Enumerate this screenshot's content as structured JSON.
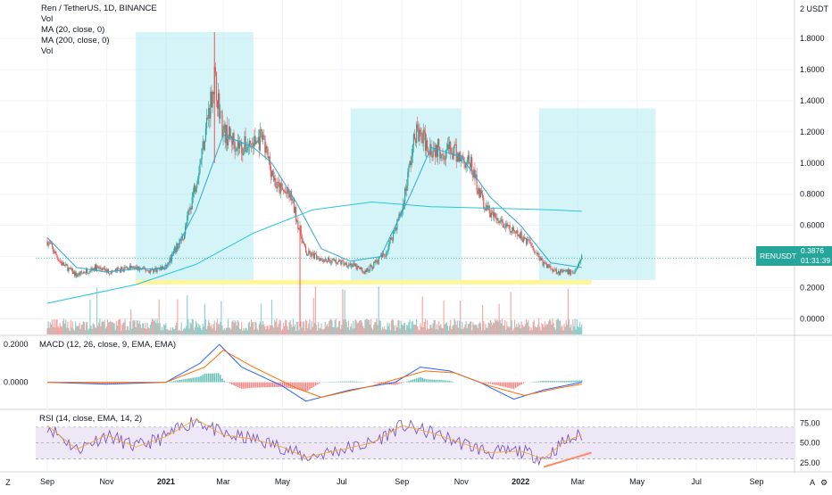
{
  "legend": {
    "symbol": "Ren / TetherUS, 1D, BINANCE",
    "vol": "Vol",
    "ma20": "MA (20, close, 0)",
    "ma200": "MA (200, close, 0)",
    "vol2": "Vol"
  },
  "price_scale_title": "2 USDT",
  "price_tag": {
    "symbol": "RENUSDT",
    "price": "0.3876",
    "countdown": "01:31:39"
  },
  "macd_label": "MACD (12, 26, close, 9, EMA, EMA)",
  "rsi_label": "RSI (14, close, EMA, 14, 2)",
  "corner_left": "Z",
  "corner_right": "A",
  "gear_icon": "gear-icon",
  "colors": {
    "up": "#26a69a",
    "down": "#ef5350",
    "ma20": "#2ca8d8",
    "ma200": "#26c6da",
    "box": "#b2ebf2",
    "support": "#fff59d",
    "macd": "#2962ff",
    "signal": "#ff6d00",
    "rsi": "#7e57c2",
    "rsi_band": "#ede7f6",
    "divergence": "#ff8a65"
  },
  "chart_data": [
    {
      "type": "candlestick",
      "title": "Ren / TetherUS, 1D, BINANCE",
      "x_ticks": [
        "Sep",
        "Nov",
        "2021",
        "Mar",
        "May",
        "Jul",
        "Sep",
        "Nov",
        "2022",
        "Mar",
        "May",
        "Jul",
        "Sep"
      ],
      "y_ticks": [
        "0.0000",
        "0.2000",
        "0.4000",
        "0.6000",
        "0.8000",
        "1.0000",
        "1.2000",
        "1.4000",
        "1.6000",
        "1.8000"
      ],
      "ylim": [
        -0.1,
        2.0
      ],
      "close_path": [
        [
          "2020-09-01",
          0.5
        ],
        [
          "2020-09-15",
          0.36
        ],
        [
          "2020-10-01",
          0.28
        ],
        [
          "2020-10-20",
          0.33
        ],
        [
          "2020-11-05",
          0.3
        ],
        [
          "2020-11-25",
          0.33
        ],
        [
          "2020-12-15",
          0.31
        ],
        [
          "2021-01-01",
          0.33
        ],
        [
          "2021-01-20",
          0.55
        ],
        [
          "2021-02-05",
          1.0
        ],
        [
          "2021-02-20",
          1.55
        ],
        [
          "2021-03-01",
          1.2
        ],
        [
          "2021-03-20",
          1.1
        ],
        [
          "2021-04-10",
          1.15
        ],
        [
          "2021-04-25",
          0.85
        ],
        [
          "2021-05-10",
          0.78
        ],
        [
          "2021-05-25",
          0.42
        ],
        [
          "2021-06-15",
          0.38
        ],
        [
          "2021-07-10",
          0.35
        ],
        [
          "2021-07-25",
          0.3
        ],
        [
          "2021-08-15",
          0.42
        ],
        [
          "2021-09-01",
          0.7
        ],
        [
          "2021-09-15",
          1.2
        ],
        [
          "2021-10-01",
          1.1
        ],
        [
          "2021-10-20",
          1.08
        ],
        [
          "2021-11-10",
          1.0
        ],
        [
          "2021-11-25",
          0.72
        ],
        [
          "2021-12-10",
          0.62
        ],
        [
          "2021-12-25",
          0.55
        ],
        [
          "2022-01-10",
          0.5
        ],
        [
          "2022-01-25",
          0.35
        ],
        [
          "2022-02-10",
          0.3
        ],
        [
          "2022-02-25",
          0.3
        ],
        [
          "2022-03-05",
          0.3876
        ]
      ],
      "ma20": [
        [
          "2020-09-01",
          0.52
        ],
        [
          "2020-10-01",
          0.33
        ],
        [
          "2020-11-01",
          0.3
        ],
        [
          "2020-12-01",
          0.32
        ],
        [
          "2021-01-01",
          0.32
        ],
        [
          "2021-02-01",
          0.7
        ],
        [
          "2021-03-01",
          1.18
        ],
        [
          "2021-04-01",
          1.1
        ],
        [
          "2021-04-20",
          1.0
        ],
        [
          "2021-05-15",
          0.75
        ],
        [
          "2021-06-10",
          0.45
        ],
        [
          "2021-07-10",
          0.37
        ],
        [
          "2021-08-10",
          0.4
        ],
        [
          "2021-09-10",
          0.8
        ],
        [
          "2021-10-01",
          1.1
        ],
        [
          "2021-11-01",
          1.04
        ],
        [
          "2021-12-01",
          0.78
        ],
        [
          "2022-01-01",
          0.6
        ],
        [
          "2022-02-01",
          0.36
        ],
        [
          "2022-03-05",
          0.33
        ]
      ],
      "ma200": [
        [
          "2020-09-01",
          0.1
        ],
        [
          "2020-12-01",
          0.22
        ],
        [
          "2021-02-01",
          0.35
        ],
        [
          "2021-04-01",
          0.55
        ],
        [
          "2021-06-01",
          0.7
        ],
        [
          "2021-08-01",
          0.75
        ],
        [
          "2021-10-01",
          0.72
        ],
        [
          "2021-12-01",
          0.71
        ],
        [
          "2022-02-01",
          0.7
        ],
        [
          "2022-03-05",
          0.69
        ]
      ],
      "boxes": [
        {
          "x": [
            "2020-12-01",
            "2021-04-01"
          ],
          "y": [
            0.25,
            1.84
          ]
        },
        {
          "x": [
            "2021-07-10",
            "2021-11-01"
          ],
          "y": [
            0.25,
            1.35
          ]
        },
        {
          "x": [
            "2022-01-20",
            "2022-05-20"
          ],
          "y": [
            0.25,
            1.35
          ]
        }
      ],
      "support_zone": {
        "x": [
          "2020-12-01",
          "2022-03-15"
        ],
        "y": [
          0.22,
          0.25
        ]
      },
      "last_price": 0.3876
    },
    {
      "type": "bar",
      "title": "Vol",
      "note": "volume bars overlaid at bottom of price pane"
    },
    {
      "type": "line",
      "title": "MACD (12, 26, close, 9, EMA, EMA)",
      "y_ticks": [
        "0.0000",
        "0.2000"
      ],
      "ylim": [
        -0.12,
        0.22
      ],
      "macd": [
        [
          "2020-09-01",
          0.0
        ],
        [
          "2020-11-01",
          -0.01
        ],
        [
          "2021-01-01",
          0.0
        ],
        [
          "2021-02-05",
          0.1
        ],
        [
          "2021-02-25",
          0.2
        ],
        [
          "2021-03-20",
          0.08
        ],
        [
          "2021-05-01",
          -0.02
        ],
        [
          "2021-05-25",
          -0.1
        ],
        [
          "2021-07-10",
          -0.04
        ],
        [
          "2021-08-25",
          0.0
        ],
        [
          "2021-09-20",
          0.08
        ],
        [
          "2021-10-20",
          0.06
        ],
        [
          "2021-11-20",
          0.0
        ],
        [
          "2021-12-25",
          -0.09
        ],
        [
          "2022-01-25",
          -0.04
        ],
        [
          "2022-03-05",
          0.0
        ]
      ],
      "signal": [
        [
          "2020-09-01",
          0.0
        ],
        [
          "2021-01-01",
          0.0
        ],
        [
          "2021-02-10",
          0.08
        ],
        [
          "2021-03-01",
          0.17
        ],
        [
          "2021-04-01",
          0.08
        ],
        [
          "2021-05-15",
          -0.03
        ],
        [
          "2021-06-10",
          -0.08
        ],
        [
          "2021-08-01",
          -0.02
        ],
        [
          "2021-09-25",
          0.06
        ],
        [
          "2021-10-25",
          0.05
        ],
        [
          "2021-12-01",
          -0.02
        ],
        [
          "2022-01-05",
          -0.07
        ],
        [
          "2022-02-10",
          -0.03
        ],
        [
          "2022-03-05",
          -0.01
        ]
      ]
    },
    {
      "type": "line",
      "title": "RSI (14, close, EMA, 14, 2)",
      "y_ticks": [
        "25.00",
        "50.00",
        "75.00"
      ],
      "ylim": [
        15,
        90
      ],
      "band": [
        30,
        70
      ],
      "rsi": [
        [
          "2020-09-01",
          72
        ],
        [
          "2020-10-01",
          42
        ],
        [
          "2020-11-01",
          60
        ],
        [
          "2020-12-01",
          45
        ],
        [
          "2021-01-01",
          58
        ],
        [
          "2021-02-01",
          80
        ],
        [
          "2021-03-01",
          60
        ],
        [
          "2021-04-01",
          55
        ],
        [
          "2021-05-01",
          45
        ],
        [
          "2021-05-25",
          32
        ],
        [
          "2021-07-01",
          42
        ],
        [
          "2021-08-01",
          50
        ],
        [
          "2021-09-01",
          72
        ],
        [
          "2021-10-01",
          63
        ],
        [
          "2021-11-01",
          50
        ],
        [
          "2021-12-01",
          38
        ],
        [
          "2022-01-01",
          40
        ],
        [
          "2022-01-25",
          30
        ],
        [
          "2022-02-15",
          52
        ],
        [
          "2022-03-05",
          60
        ]
      ],
      "divergence_line": [
        [
          "2022-01-25",
          20
        ],
        [
          "2022-03-15",
          38
        ]
      ]
    }
  ]
}
